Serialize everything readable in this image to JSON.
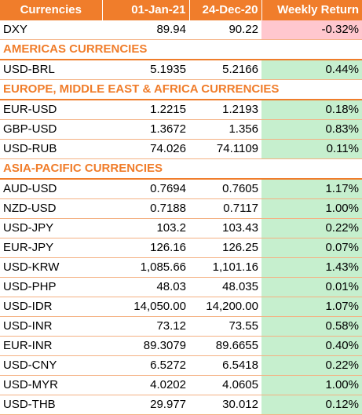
{
  "header": {
    "col1": "Currencies",
    "col2": "01-Jan-21",
    "col3": "24-Dec-20",
    "col4": "Weekly Return"
  },
  "colors": {
    "header_bg": "#f07d2b",
    "positive_bg": "#c6efce",
    "positive_text": "#006100",
    "negative_bg": "#ffc7ce",
    "negative_text": "#9c0006"
  },
  "rows": [
    {
      "type": "data",
      "name": "DXY",
      "v1": "89.94",
      "v2": "90.22",
      "ret": "-0.32%",
      "sign": "neg"
    },
    {
      "type": "section",
      "name": "AMERICAS CURRENCIES"
    },
    {
      "type": "data",
      "name": "USD-BRL",
      "v1": "5.1935",
      "v2": "5.2166",
      "ret": "0.44%",
      "sign": "pos"
    },
    {
      "type": "section",
      "name": "EUROPE, MIDDLE EAST & AFRICA CURRENCIES"
    },
    {
      "type": "data",
      "name": "EUR-USD",
      "v1": "1.2215",
      "v2": "1.2193",
      "ret": "0.18%",
      "sign": "pos"
    },
    {
      "type": "data",
      "name": "GBP-USD",
      "v1": "1.3672",
      "v2": "1.356",
      "ret": "0.83%",
      "sign": "pos"
    },
    {
      "type": "data",
      "name": "USD-RUB",
      "v1": "74.026",
      "v2": "74.1109",
      "ret": "0.11%",
      "sign": "pos"
    },
    {
      "type": "section",
      "name": "ASIA-PACIFIC CURRENCIES"
    },
    {
      "type": "data",
      "name": "AUD-USD",
      "v1": "0.7694",
      "v2": "0.7605",
      "ret": "1.17%",
      "sign": "pos"
    },
    {
      "type": "data",
      "name": "NZD-USD",
      "v1": "0.7188",
      "v2": "0.7117",
      "ret": "1.00%",
      "sign": "pos"
    },
    {
      "type": "data",
      "name": "USD-JPY",
      "v1": "103.2",
      "v2": "103.43",
      "ret": "0.22%",
      "sign": "pos"
    },
    {
      "type": "data",
      "name": "EUR-JPY",
      "v1": "126.16",
      "v2": "126.25",
      "ret": "0.07%",
      "sign": "pos"
    },
    {
      "type": "data",
      "name": "USD-KRW",
      "v1": "1,085.66",
      "v2": "1,101.16",
      "ret": "1.43%",
      "sign": "pos"
    },
    {
      "type": "data",
      "name": "USD-PHP",
      "v1": "48.03",
      "v2": "48.035",
      "ret": "0.01%",
      "sign": "pos"
    },
    {
      "type": "data",
      "name": "USD-IDR",
      "v1": "14,050.00",
      "v2": "14,200.00",
      "ret": "1.07%",
      "sign": "pos"
    },
    {
      "type": "data",
      "name": "USD-INR",
      "v1": "73.12",
      "v2": "73.55",
      "ret": "0.58%",
      "sign": "pos"
    },
    {
      "type": "data",
      "name": "EUR-INR",
      "v1": "89.3079",
      "v2": "89.6655",
      "ret": "0.40%",
      "sign": "pos"
    },
    {
      "type": "data",
      "name": "USD-CNY",
      "v1": "6.5272",
      "v2": "6.5418",
      "ret": "0.22%",
      "sign": "pos"
    },
    {
      "type": "data",
      "name": "USD-MYR",
      "v1": "4.0202",
      "v2": "4.0605",
      "ret": "1.00%",
      "sign": "pos"
    },
    {
      "type": "data",
      "name": "USD-THB",
      "v1": "29.977",
      "v2": "30.012",
      "ret": "0.12%",
      "sign": "pos"
    }
  ]
}
